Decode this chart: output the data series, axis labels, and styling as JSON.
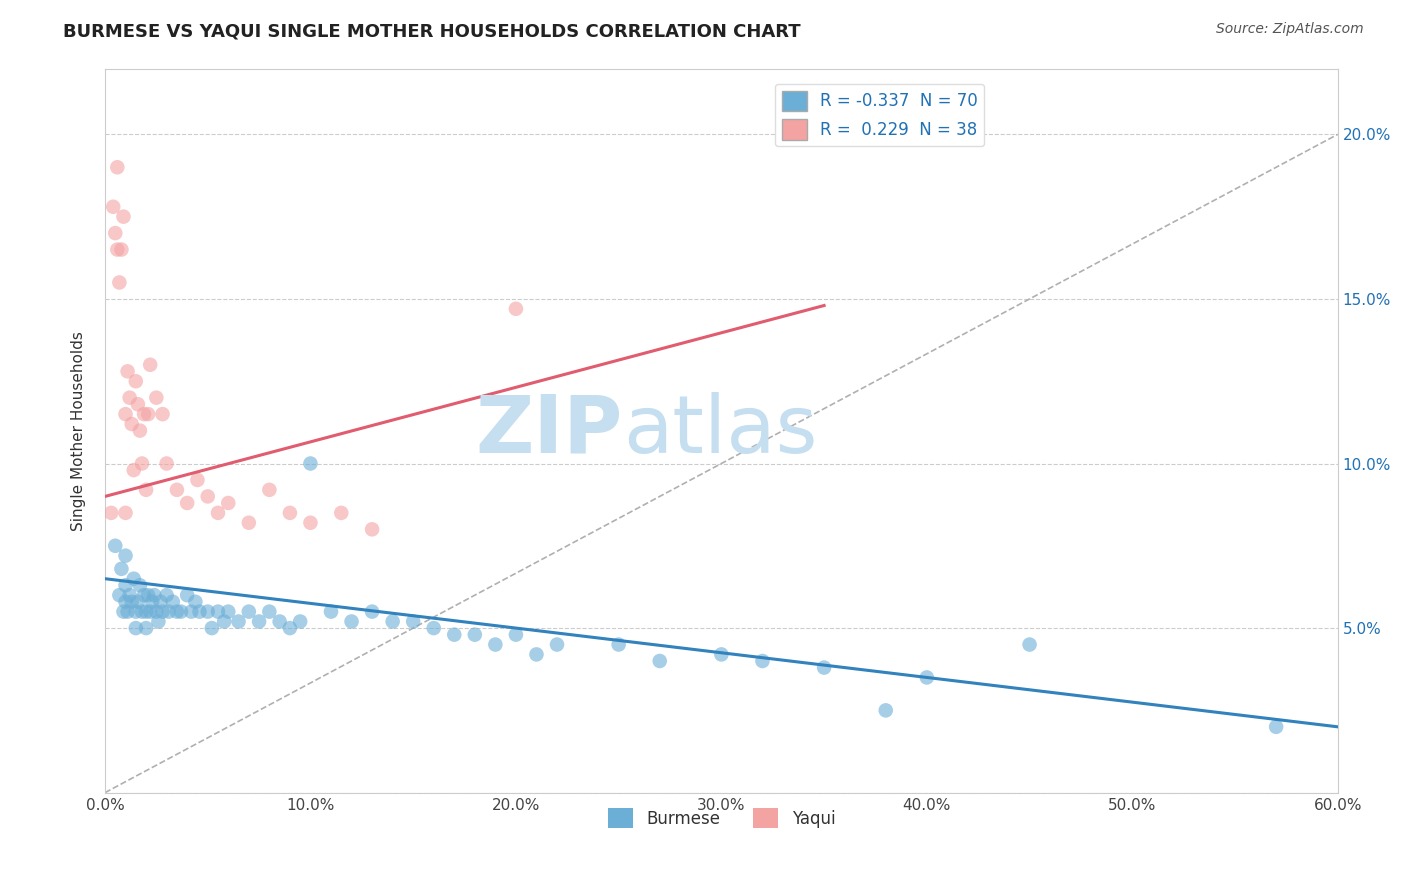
{
  "title": "BURMESE VS YAQUI SINGLE MOTHER HOUSEHOLDS CORRELATION CHART",
  "source": "Source: ZipAtlas.com",
  "ylabel": "Single Mother Households",
  "legend_bottom": [
    "Burmese",
    "Yaqui"
  ],
  "burmese_R": -0.337,
  "burmese_N": 70,
  "yaqui_R": 0.229,
  "yaqui_N": 38,
  "xlim": [
    0.0,
    0.6
  ],
  "ylim": [
    0.0,
    0.22
  ],
  "x_ticks": [
    0.0,
    0.1,
    0.2,
    0.3,
    0.4,
    0.5,
    0.6
  ],
  "x_tick_labels": [
    "0.0%",
    "10.0%",
    "20.0%",
    "30.0%",
    "40.0%",
    "50.0%",
    "60.0%"
  ],
  "y_ticks": [
    0.0,
    0.05,
    0.1,
    0.15,
    0.2
  ],
  "y_tick_labels_left": [
    "",
    "",
    "",
    "",
    ""
  ],
  "y_tick_labels_right": [
    "",
    "5.0%",
    "10.0%",
    "15.0%",
    "20.0%"
  ],
  "burmese_color": "#6baed6",
  "yaqui_color": "#f4a3a3",
  "burmese_line_color": "#3182bd",
  "yaqui_line_color": "#e05c6e",
  "grid_color": "#cccccc",
  "watermark_zip": "ZIP",
  "watermark_atlas": "atlas",
  "watermark_color_zip": "#c5dff0",
  "watermark_color_atlas": "#c5dff0",
  "burmese_x": [
    0.005,
    0.007,
    0.008,
    0.009,
    0.01,
    0.01,
    0.01,
    0.011,
    0.012,
    0.013,
    0.014,
    0.015,
    0.015,
    0.016,
    0.017,
    0.018,
    0.019,
    0.02,
    0.02,
    0.021,
    0.022,
    0.023,
    0.024,
    0.025,
    0.026,
    0.027,
    0.028,
    0.03,
    0.031,
    0.033,
    0.035,
    0.037,
    0.04,
    0.042,
    0.044,
    0.046,
    0.05,
    0.052,
    0.055,
    0.058,
    0.06,
    0.065,
    0.07,
    0.075,
    0.08,
    0.085,
    0.09,
    0.095,
    0.1,
    0.11,
    0.12,
    0.13,
    0.14,
    0.15,
    0.16,
    0.17,
    0.18,
    0.19,
    0.2,
    0.21,
    0.22,
    0.25,
    0.27,
    0.3,
    0.32,
    0.35,
    0.38,
    0.4,
    0.45,
    0.57
  ],
  "burmese_y": [
    0.075,
    0.06,
    0.068,
    0.055,
    0.063,
    0.058,
    0.072,
    0.055,
    0.06,
    0.058,
    0.065,
    0.055,
    0.05,
    0.058,
    0.063,
    0.055,
    0.06,
    0.055,
    0.05,
    0.06,
    0.055,
    0.058,
    0.06,
    0.055,
    0.052,
    0.058,
    0.055,
    0.06,
    0.055,
    0.058,
    0.055,
    0.055,
    0.06,
    0.055,
    0.058,
    0.055,
    0.055,
    0.05,
    0.055,
    0.052,
    0.055,
    0.052,
    0.055,
    0.052,
    0.055,
    0.052,
    0.05,
    0.052,
    0.1,
    0.055,
    0.052,
    0.055,
    0.052,
    0.052,
    0.05,
    0.048,
    0.048,
    0.045,
    0.048,
    0.042,
    0.045,
    0.045,
    0.04,
    0.042,
    0.04,
    0.038,
    0.025,
    0.035,
    0.045,
    0.02
  ],
  "yaqui_x": [
    0.003,
    0.004,
    0.005,
    0.006,
    0.006,
    0.007,
    0.008,
    0.009,
    0.01,
    0.01,
    0.011,
    0.012,
    0.013,
    0.014,
    0.015,
    0.016,
    0.017,
    0.018,
    0.019,
    0.02,
    0.021,
    0.022,
    0.025,
    0.028,
    0.03,
    0.035,
    0.04,
    0.045,
    0.05,
    0.055,
    0.06,
    0.07,
    0.08,
    0.09,
    0.1,
    0.115,
    0.13,
    0.2
  ],
  "yaqui_y": [
    0.085,
    0.178,
    0.17,
    0.165,
    0.19,
    0.155,
    0.165,
    0.175,
    0.085,
    0.115,
    0.128,
    0.12,
    0.112,
    0.098,
    0.125,
    0.118,
    0.11,
    0.1,
    0.115,
    0.092,
    0.115,
    0.13,
    0.12,
    0.115,
    0.1,
    0.092,
    0.088,
    0.095,
    0.09,
    0.085,
    0.088,
    0.082,
    0.092,
    0.085,
    0.082,
    0.085,
    0.08,
    0.147
  ]
}
